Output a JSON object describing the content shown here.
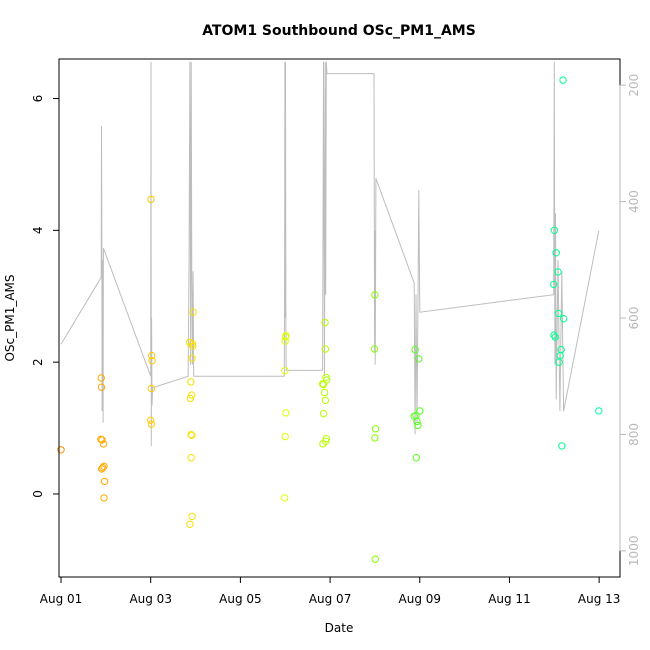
{
  "chart_data": {
    "type": "scatter",
    "title": "ATOM1 Southbound OSc_PM1_AMS",
    "xlabel": "Date",
    "ylabel": "OSc_PM1_AMS",
    "x_ticks": [
      "Aug 01",
      "Aug 03",
      "Aug 05",
      "Aug 07",
      "Aug 09",
      "Aug 11",
      "Aug 13"
    ],
    "y_ticks": [
      "0",
      "2",
      "4",
      "6"
    ],
    "secondary_y_ticks": [
      "200",
      "400",
      "600",
      "800",
      "1000"
    ],
    "secondary_y_reversed": true,
    "xlim": [
      "Jul 31 22:55",
      "Aug 13 11:10"
    ],
    "ylim": [
      -1.26,
      6.6
    ],
    "secondary_ylim": [
      1045,
      155
    ],
    "grid": false,
    "colors": {
      "points_scale": [
        "#ff8c00",
        "#ffd700",
        "#e8ff00",
        "#7cff00",
        "#00ff66",
        "#00ffaa"
      ],
      "trace": "#bdbdbd",
      "axis": "#000000"
    },
    "series": [
      {
        "values": [
          {
            "x": "Aug 01 00:00",
            "y": 0.67
          },
          {
            "x": "Aug 01 21:30",
            "y": 1.76
          },
          {
            "x": "Aug 01 21:40",
            "y": 1.62
          },
          {
            "x": "Aug 01 21:20",
            "y": 0.83
          },
          {
            "x": "Aug 01 22:00",
            "y": 0.82
          },
          {
            "x": "Aug 01 21:50",
            "y": 0.38
          },
          {
            "x": "Aug 01 22:20",
            "y": 0.4
          },
          {
            "x": "Aug 01 22:40",
            "y": 0.76
          },
          {
            "x": "Aug 01 23:00",
            "y": 0.42
          },
          {
            "x": "Aug 01 23:20",
            "y": 0.19
          },
          {
            "x": "Aug 01 23:00",
            "y": -0.06
          },
          {
            "x": "Aug 03 00:10",
            "y": 4.47
          },
          {
            "x": "Aug 03 00:30",
            "y": 2.1
          },
          {
            "x": "Aug 03 00:40",
            "y": 2.02
          },
          {
            "x": "Aug 03 00:20",
            "y": 1.6
          },
          {
            "x": "Aug 03 00:00",
            "y": 1.12
          },
          {
            "x": "Aug 03 00:20",
            "y": 1.06
          },
          {
            "x": "Aug 03 20:50",
            "y": 2.3
          },
          {
            "x": "Aug 03 21:30",
            "y": 1.7
          },
          {
            "x": "Aug 03 21:10",
            "y": 1.45
          },
          {
            "x": "Aug 03 22:00",
            "y": 1.5
          },
          {
            "x": "Aug 03 21:40",
            "y": 0.9
          },
          {
            "x": "Aug 03 22:00",
            "y": 0.89
          },
          {
            "x": "Aug 03 21:40",
            "y": 0.55
          },
          {
            "x": "Aug 03 21:00",
            "y": -0.46
          },
          {
            "x": "Aug 03 22:10",
            "y": -0.34
          },
          {
            "x": "Aug 03 22:40",
            "y": 2.76
          },
          {
            "x": "Aug 03 22:20",
            "y": 2.28
          },
          {
            "x": "Aug 03 22:30",
            "y": 2.24
          },
          {
            "x": "Aug 03 22:10",
            "y": 2.06
          },
          {
            "x": "Aug 06 00:10",
            "y": 2.38
          },
          {
            "x": "Aug 06 00:20",
            "y": 2.4
          },
          {
            "x": "Aug 06 00:00",
            "y": 2.32
          },
          {
            "x": "Aug 05 23:50",
            "y": 1.87
          },
          {
            "x": "Aug 06 00:20",
            "y": 1.23
          },
          {
            "x": "Aug 06 00:00",
            "y": 0.87
          },
          {
            "x": "Aug 05 23:40",
            "y": -0.06
          },
          {
            "x": "Aug 06 20:00",
            "y": 1.67
          },
          {
            "x": "Aug 06 20:30",
            "y": 1.66
          },
          {
            "x": "Aug 06 21:00",
            "y": 1.54
          },
          {
            "x": "Aug 06 20:30",
            "y": 1.22
          },
          {
            "x": "Aug 06 21:50",
            "y": 1.77
          },
          {
            "x": "Aug 06 22:10",
            "y": 1.73
          },
          {
            "x": "Aug 06 21:30",
            "y": 1.42
          },
          {
            "x": "Aug 06 20:10",
            "y": 0.76
          },
          {
            "x": "Aug 06 21:40",
            "y": 0.8
          },
          {
            "x": "Aug 06 22:00",
            "y": 0.84
          },
          {
            "x": "Aug 06 21:20",
            "y": 2.6
          },
          {
            "x": "Aug 06 21:30",
            "y": 2.2
          },
          {
            "x": "Aug 08 00:00",
            "y": 3.02
          },
          {
            "x": "Aug 07 23:50",
            "y": 2.2
          },
          {
            "x": "Aug 08 00:20",
            "y": 0.99
          },
          {
            "x": "Aug 08 00:00",
            "y": 0.85
          },
          {
            "x": "Aug 08 00:10",
            "y": -0.99
          },
          {
            "x": "Aug 08 21:30",
            "y": 2.19
          },
          {
            "x": "Aug 08 23:30",
            "y": 2.05
          },
          {
            "x": "Aug 08 21:00",
            "y": 1.18
          },
          {
            "x": "Aug 08 22:00",
            "y": 1.19
          },
          {
            "x": "Aug 09 00:00",
            "y": 1.26
          },
          {
            "x": "Aug 08 22:30",
            "y": 1.1
          },
          {
            "x": "Aug 08 23:00",
            "y": 1.04
          },
          {
            "x": "Aug 08 22:10",
            "y": 0.55
          },
          {
            "x": "Aug 12 00:00",
            "y": 4.0
          },
          {
            "x": "Aug 12 01:00",
            "y": 3.66
          },
          {
            "x": "Aug 12 02:00",
            "y": 3.37
          },
          {
            "x": "Aug 11 23:40",
            "y": 3.18
          },
          {
            "x": "Aug 12 02:20",
            "y": 2.74
          },
          {
            "x": "Aug 12 05:00",
            "y": 2.66
          },
          {
            "x": "Aug 11 23:50",
            "y": 2.41
          },
          {
            "x": "Aug 12 00:30",
            "y": 2.38
          },
          {
            "x": "Aug 12 03:40",
            "y": 2.19
          },
          {
            "x": "Aug 12 03:10",
            "y": 2.1
          },
          {
            "x": "Aug 12 02:30",
            "y": 2.0
          },
          {
            "x": "Aug 12 04:40",
            "y": 6.28
          },
          {
            "x": "Aug 12 04:00",
            "y": 0.73
          },
          {
            "x": "Aug 12 23:50",
            "y": 1.26
          }
        ]
      }
    ],
    "secondary_trace": [
      {
        "x": "Aug 01 00:00",
        "y2": 645
      },
      {
        "x": "Aug 01 21:30",
        "y2": 530
      },
      {
        "x": "Aug 01 21:40",
        "y2": 270
      },
      {
        "x": "Aug 01 21:50",
        "y2": 420
      },
      {
        "x": "Aug 01 22:00",
        "y2": 760
      },
      {
        "x": "Aug 01 22:10",
        "y2": 520
      },
      {
        "x": "Aug 01 22:20",
        "y2": 500
      },
      {
        "x": "Aug 01 22:30",
        "y2": 780
      },
      {
        "x": "Aug 01 22:40",
        "y2": 480
      },
      {
        "x": "Aug 03 00:00",
        "y2": 700
      },
      {
        "x": "Aug 03 00:10",
        "y2": 160
      },
      {
        "x": "Aug 03 00:20",
        "y2": 820
      },
      {
        "x": "Aug 03 00:30",
        "y2": 600
      },
      {
        "x": "Aug 03 00:40",
        "y2": 750
      },
      {
        "x": "Aug 03 01:00",
        "y2": 720
      },
      {
        "x": "Aug 03 20:00",
        "y2": 700
      },
      {
        "x": "Aug 03 20:30",
        "y2": 520
      },
      {
        "x": "Aug 03 21:00",
        "y2": 160
      },
      {
        "x": "Aug 03 21:20",
        "y2": 680
      },
      {
        "x": "Aug 03 21:40",
        "y2": 160
      },
      {
        "x": "Aug 03 22:00",
        "y2": 530
      },
      {
        "x": "Aug 03 22:20",
        "y2": 680
      },
      {
        "x": "Aug 03 22:40",
        "y2": 520
      },
      {
        "x": "Aug 03 23:00",
        "y2": 700
      },
      {
        "x": "Aug 05 23:30",
        "y2": 700
      },
      {
        "x": "Aug 05 23:40",
        "y2": 520
      },
      {
        "x": "Aug 05 23:50",
        "y2": 160
      },
      {
        "x": "Aug 06 00:00",
        "y2": 600
      },
      {
        "x": "Aug 06 00:10",
        "y2": 160
      },
      {
        "x": "Aug 06 00:20",
        "y2": 620
      },
      {
        "x": "Aug 06 00:30",
        "y2": 690
      },
      {
        "x": "Aug 06 20:00",
        "y2": 690
      },
      {
        "x": "Aug 06 20:30",
        "y2": 160
      },
      {
        "x": "Aug 06 21:00",
        "y2": 700
      },
      {
        "x": "Aug 06 21:20",
        "y2": 160
      },
      {
        "x": "Aug 06 21:40",
        "y2": 560
      },
      {
        "x": "Aug 06 22:00",
        "y2": 160
      },
      {
        "x": "Aug 06 22:20",
        "y2": 180
      },
      {
        "x": "Aug 07 23:30",
        "y2": 180
      },
      {
        "x": "Aug 07 23:50",
        "y2": 660
      },
      {
        "x": "Aug 08 00:00",
        "y2": 450
      },
      {
        "x": "Aug 08 00:10",
        "y2": 680
      },
      {
        "x": "Aug 08 00:20",
        "y2": 560
      },
      {
        "x": "Aug 08 00:30",
        "y2": 360
      },
      {
        "x": "Aug 08 21:00",
        "y2": 540
      },
      {
        "x": "Aug 08 21:30",
        "y2": 800
      },
      {
        "x": "Aug 08 22:00",
        "y2": 560
      },
      {
        "x": "Aug 08 22:30",
        "y2": 780
      },
      {
        "x": "Aug 08 23:00",
        "y2": 590
      },
      {
        "x": "Aug 08 23:30",
        "y2": 380
      },
      {
        "x": "Aug 09 00:00",
        "y2": 590
      },
      {
        "x": "Aug 11 23:40",
        "y2": 560
      },
      {
        "x": "Aug 12 00:00",
        "y2": 160
      },
      {
        "x": "Aug 12 00:20",
        "y2": 680
      },
      {
        "x": "Aug 12 00:40",
        "y2": 420
      },
      {
        "x": "Aug 12 01:00",
        "y2": 740
      },
      {
        "x": "Aug 12 02:00",
        "y2": 500
      },
      {
        "x": "Aug 12 03:00",
        "y2": 760
      },
      {
        "x": "Aug 12 04:00",
        "y2": 520
      },
      {
        "x": "Aug 12 05:00",
        "y2": 760
      },
      {
        "x": "Aug 12 23:50",
        "y2": 450
      }
    ]
  }
}
